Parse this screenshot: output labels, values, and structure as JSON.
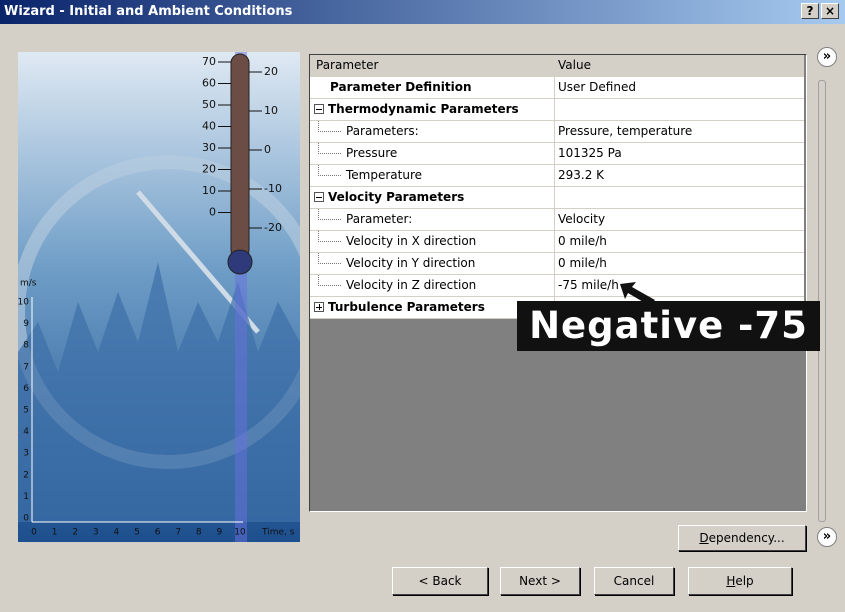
{
  "window": {
    "title": "Wizard - Initial and Ambient Conditions",
    "title_buttons": [
      "?",
      "×"
    ]
  },
  "illustration": {
    "thermometer_left_scale": [
      "70",
      "60",
      "50",
      "40",
      "30",
      "20",
      "10",
      "0"
    ],
    "thermometer_right_scale": [
      "20",
      "10",
      "0",
      "-10",
      "-20"
    ],
    "y_axis_unit": "m/s",
    "y_axis_labels": [
      "10",
      "9",
      "8",
      "7",
      "6",
      "5",
      "4",
      "3",
      "2",
      "1",
      "0"
    ],
    "x_axis_labels": [
      "0",
      "1",
      "2",
      "3",
      "4",
      "5",
      "6",
      "7",
      "8",
      "9",
      "10"
    ],
    "x_axis_unit": "Time, s"
  },
  "table": {
    "header": [
      "Parameter",
      "Value"
    ],
    "rows": [
      {
        "parameter": "Parameter Definition",
        "value": "User Defined"
      },
      {
        "parameter": "Thermodynamic Parameters"
      },
      {
        "parameter": "Parameters:",
        "value": "Pressure, temperature"
      },
      {
        "parameter": "Pressure",
        "value": "101325 Pa"
      },
      {
        "parameter": "Temperature",
        "value": "293.2 K"
      },
      {
        "parameter": "Velocity Parameters"
      },
      {
        "parameter": "Parameter:",
        "value": "Velocity"
      },
      {
        "parameter": "Velocity in X direction",
        "value": "0 mile/h"
      },
      {
        "parameter": "Velocity in Y direction",
        "value": "0 mile/h"
      },
      {
        "parameter": "Velocity in Z direction",
        "value": "-75 mile/h"
      },
      {
        "parameter": "Turbulence Parameters"
      }
    ]
  },
  "callout": "Negative -75",
  "side_buttons": [
    "»",
    "»"
  ],
  "buttons": {
    "dependency": "Dependency...",
    "back": "< Back",
    "next": "Next >",
    "cancel": "Cancel",
    "help": "Help"
  }
}
